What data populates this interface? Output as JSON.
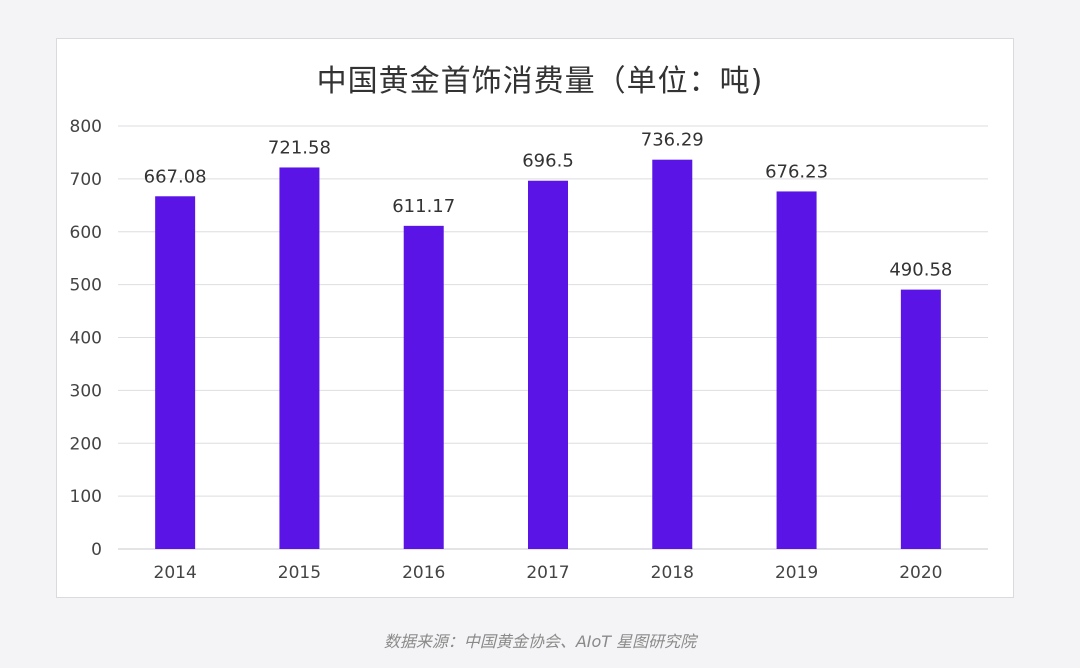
{
  "chart_data": {
    "type": "bar",
    "title": "中国黄金首饰消费量（单位：吨)",
    "categories": [
      "2014",
      "2015",
      "2016",
      "2017",
      "2018",
      "2019",
      "2020"
    ],
    "values": [
      667.08,
      721.58,
      611.17,
      696.5,
      736.29,
      676.23,
      490.58
    ],
    "value_labels": [
      "667.08",
      "721.58",
      "611.17",
      "696.5",
      "736.29",
      "676.23",
      "490.58"
    ],
    "ylim": [
      0,
      800
    ],
    "yticks": [
      "0",
      "100",
      "200",
      "300",
      "400",
      "500",
      "600",
      "700",
      "800"
    ],
    "grid": true,
    "bar_color": "#5a14e6"
  },
  "source": "数据来源：中国黄金协会、AIoT 星图研究院"
}
